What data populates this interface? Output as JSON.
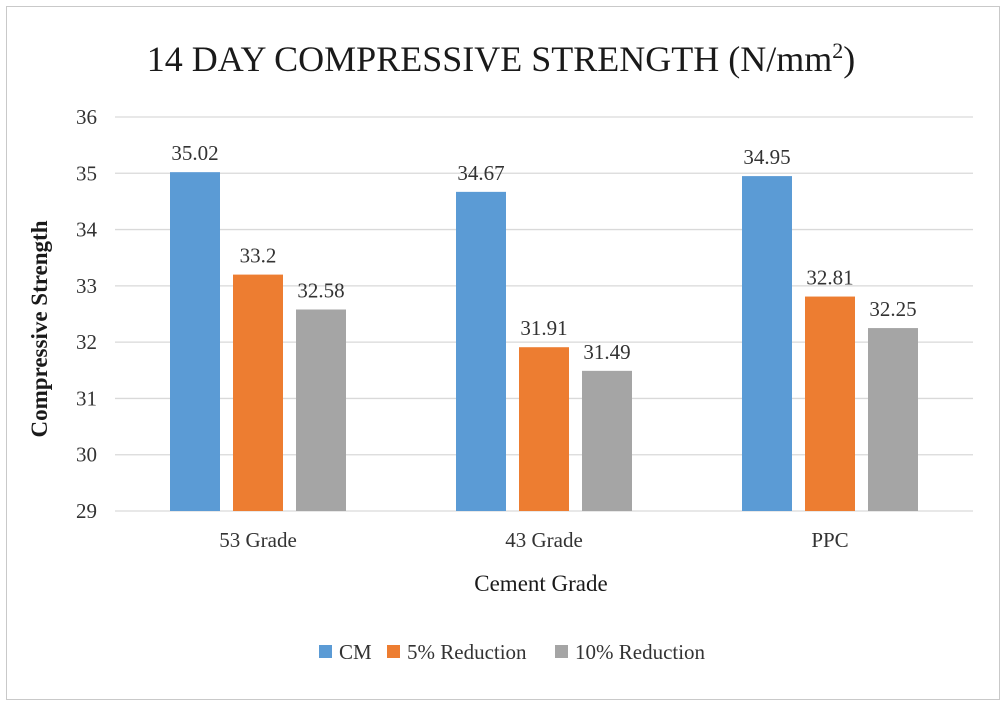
{
  "chart_data": {
    "type": "bar",
    "title": "14 DAY COMPRESSIVE STRENGTH (N/mm",
    "title_superscript": "2",
    "title_suffix": ")",
    "xlabel": "Cement Grade",
    "ylabel": "Compressive Strength",
    "categories": [
      "53 Grade",
      "43 Grade",
      "PPC"
    ],
    "series": [
      {
        "name": "CM",
        "values": [
          35.02,
          34.67,
          34.95
        ],
        "color": "#5b9bd5"
      },
      {
        "name": "5% Reduction",
        "values": [
          33.2,
          31.91,
          32.81
        ],
        "color": "#ed7d31"
      },
      {
        "name": "10% Reduction",
        "values": [
          32.58,
          31.49,
          32.25
        ],
        "color": "#a5a5a5"
      }
    ],
    "value_labels": [
      [
        "35.02",
        "33.2",
        "32.58"
      ],
      [
        "34.67",
        "31.91",
        "31.49"
      ],
      [
        "34.95",
        "32.81",
        "32.25"
      ]
    ],
    "ylim": [
      29,
      36
    ],
    "yticks": [
      29,
      30,
      31,
      32,
      33,
      34,
      35,
      36
    ],
    "grid": true,
    "gridline_color": "#d9d9d9",
    "legend_position": "bottom"
  }
}
